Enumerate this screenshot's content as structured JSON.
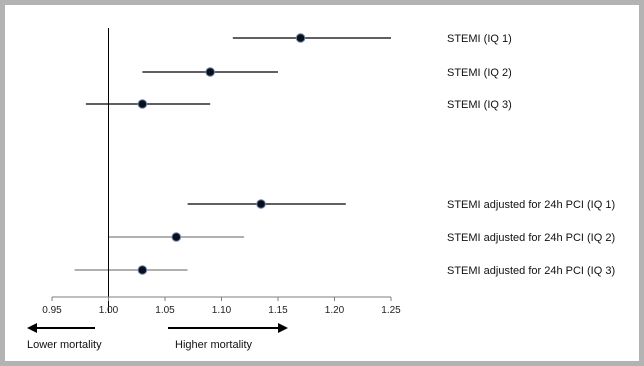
{
  "chart_data": {
    "type": "forest",
    "title": "",
    "xlabel": "",
    "ylabel": "",
    "xlim": [
      0.95,
      1.25
    ],
    "reference_line": 1.0,
    "x_ticks": [
      "0.95",
      "1.00",
      "1.05",
      "1.10",
      "1.15",
      "1.20",
      "1.25"
    ],
    "x_tick_values": [
      0.95,
      1.0,
      1.05,
      1.1,
      1.15,
      1.2,
      1.25
    ],
    "rows": [
      {
        "label": "STEMI (IQ 1)",
        "estimate": 1.17,
        "lower": 1.11,
        "upper": 1.25,
        "ci_color": "#000000"
      },
      {
        "label": "STEMI (IQ 2)",
        "estimate": 1.09,
        "lower": 1.03,
        "upper": 1.15,
        "ci_color": "#000000"
      },
      {
        "label": "STEMI (IQ 3)",
        "estimate": 1.03,
        "lower": 0.98,
        "upper": 1.09,
        "ci_color": "#000000"
      },
      {
        "label": "STEMI adjusted for 24h PCI (IQ 1)",
        "estimate": 1.135,
        "lower": 1.07,
        "upper": 1.21,
        "ci_color": "#000000"
      },
      {
        "label": "STEMI adjusted for 24h PCI (IQ 2)",
        "estimate": 1.06,
        "lower": 1.0,
        "upper": 1.12,
        "ci_color": "#808080"
      },
      {
        "label": "STEMI adjusted for 24h PCI (IQ 3)",
        "estimate": 1.03,
        "lower": 0.97,
        "upper": 1.07,
        "ci_color": "#808080"
      }
    ],
    "direction_labels": {
      "left": "Lower mortality",
      "right": "Higher mortality"
    },
    "colors": {
      "frame": "#b3b3b3",
      "point_fill": "#0a0f1e",
      "point_edge": "#6f87a8",
      "axis": "#7f7f7f"
    }
  }
}
